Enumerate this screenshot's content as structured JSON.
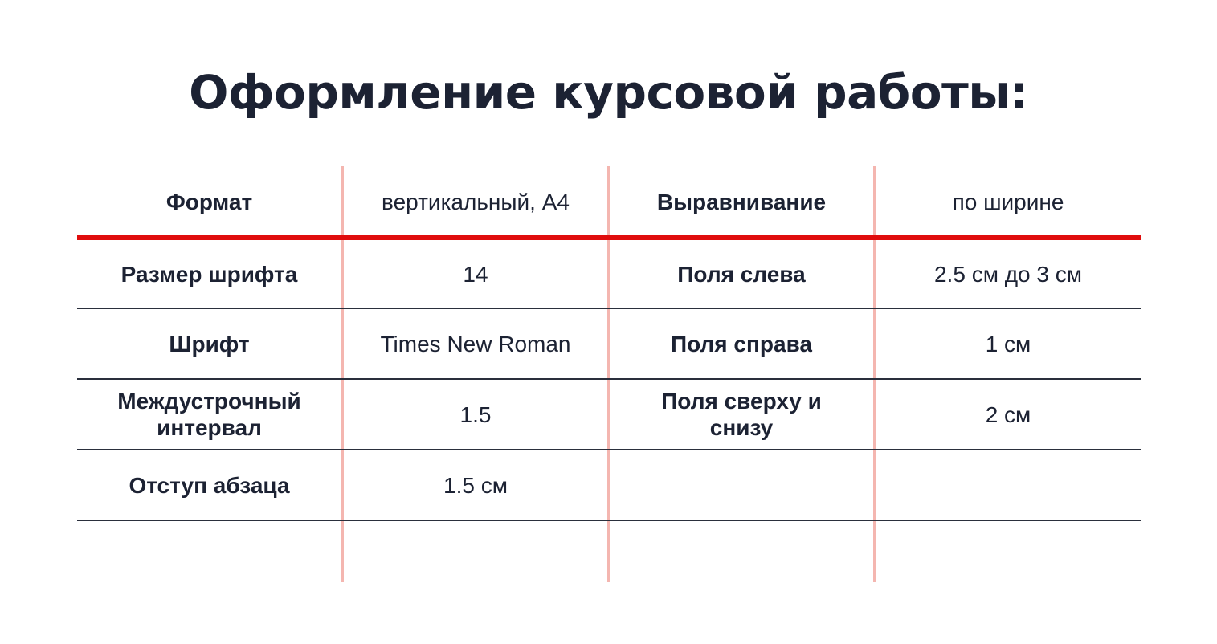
{
  "title": "Оформление курсовой работы:",
  "colors": {
    "text": "#1c2233",
    "header_rule": "#e00d0d",
    "row_rule": "#2a2f3c",
    "column_divider": "#f4b6b0"
  },
  "table": {
    "rows": [
      {
        "label1": "Формат",
        "value1": "вертикальный, А4",
        "label2": "Выравнивание",
        "value2": "по ширине"
      },
      {
        "label1": "Размер шрифта",
        "value1": "14",
        "label2": "Поля слева",
        "value2": "2.5 см до 3 см"
      },
      {
        "label1": "Шрифт",
        "value1": "Times New Roman",
        "label2": "Поля справа",
        "value2": "1 см"
      },
      {
        "label1": "Междустрочный интервал",
        "value1": "1.5",
        "label2": "Поля сверху и снизу",
        "value2": "2 см"
      },
      {
        "label1": "Отступ абзаца",
        "value1": "1.5 см",
        "label2": "",
        "value2": ""
      }
    ]
  }
}
